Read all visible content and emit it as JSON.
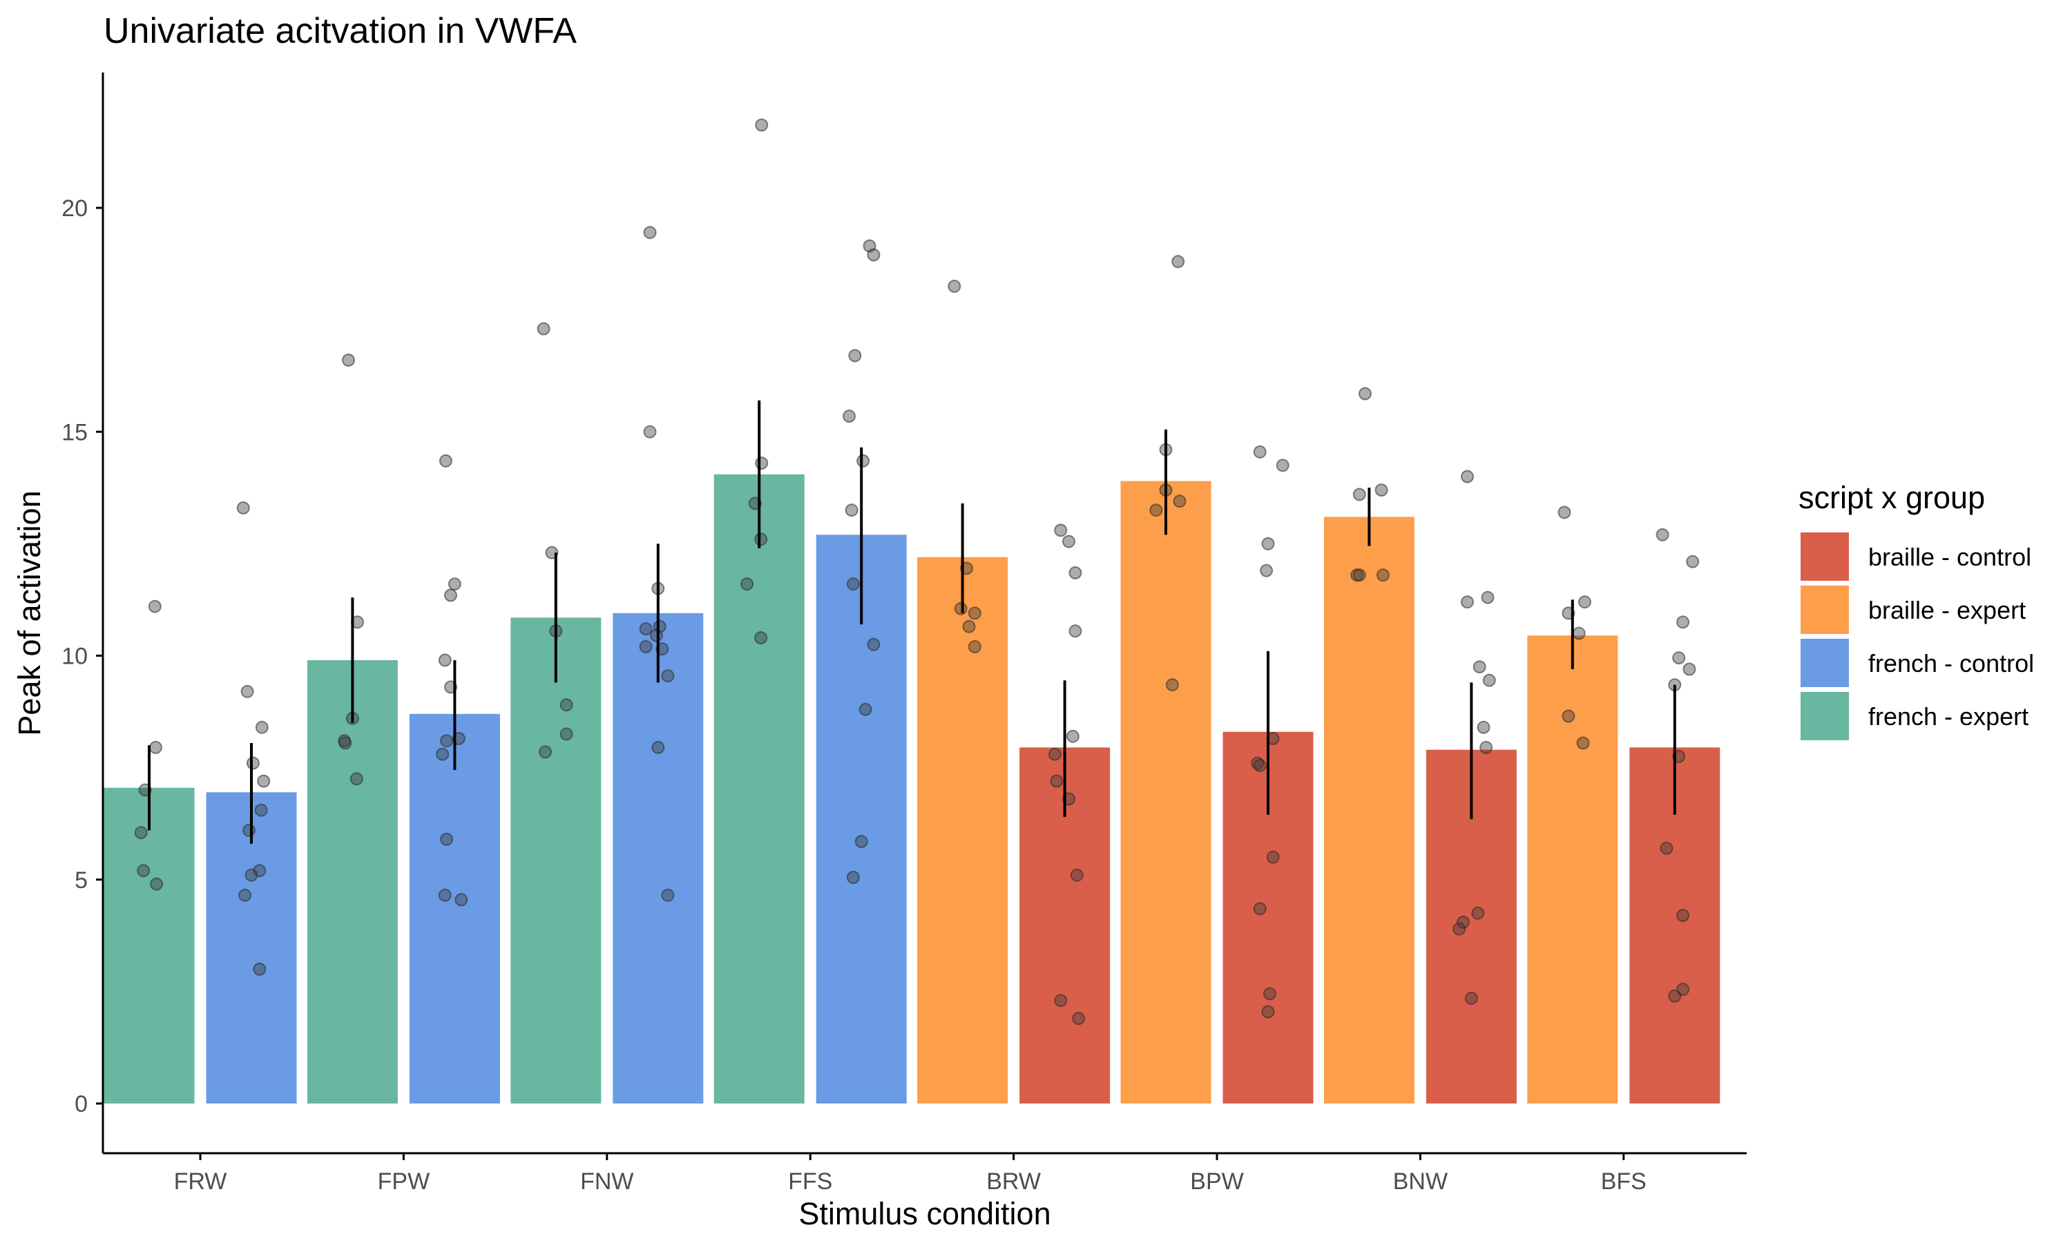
{
  "chart_data": {
    "type": "bar",
    "title": "Univariate acitvation in VWFA",
    "xlabel": "Stimulus condition",
    "ylabel": "Peak of activation",
    "ylim": [
      -1.1,
      23
    ],
    "yticks": [
      0,
      5,
      10,
      15,
      20
    ],
    "categories": [
      "FRW",
      "FPW",
      "FNW",
      "FFS",
      "BRW",
      "BPW",
      "BNW",
      "BFS"
    ],
    "legend": {
      "title": "script x group",
      "placement": "right",
      "entries": [
        {
          "label": "braille - control",
          "color": "#D95F4A"
        },
        {
          "label": "braille - expert",
          "color": "#FD9E4B"
        },
        {
          "label": "french - control",
          "color": "#6A9BE4"
        },
        {
          "label": "french - expert",
          "color": "#69B6A1"
        }
      ]
    },
    "grid": false,
    "bars": [
      {
        "category": "FRW",
        "group": "french - expert",
        "value": 7.05,
        "error": [
          6.1,
          8.0
        ],
        "points": [
          [
            -0.1,
            6.05
          ],
          [
            -0.05,
            7.0
          ],
          [
            0.07,
            11.1
          ],
          [
            0.08,
            7.95
          ],
          [
            -0.07,
            5.2
          ],
          [
            0.09,
            4.9
          ]
        ]
      },
      {
        "category": "FRW",
        "group": "french - control",
        "value": 6.95,
        "error": [
          5.8,
          8.05
        ],
        "points": [
          [
            -0.08,
            4.65
          ],
          [
            -0.03,
            6.1
          ],
          [
            0.0,
            5.1
          ],
          [
            0.1,
            5.2
          ],
          [
            0.12,
            6.55
          ],
          [
            0.1,
            3.0
          ],
          [
            0.02,
            7.6
          ],
          [
            0.15,
            7.2
          ],
          [
            0.13,
            8.4
          ],
          [
            -0.05,
            9.2
          ],
          [
            -0.1,
            13.3
          ]
        ]
      },
      {
        "category": "FPW",
        "group": "french - expert",
        "value": 9.9,
        "error": [
          8.5,
          11.3
        ],
        "points": [
          [
            -0.05,
            16.6
          ],
          [
            0.06,
            10.75
          ],
          [
            0.0,
            8.6
          ],
          [
            -0.1,
            8.1
          ],
          [
            0.05,
            7.25
          ],
          [
            -0.09,
            8.05
          ]
        ]
      },
      {
        "category": "FPW",
        "group": "french - control",
        "value": 8.7,
        "error": [
          7.45,
          9.9
        ],
        "points": [
          [
            -0.11,
            14.35
          ],
          [
            0.0,
            11.6
          ],
          [
            -0.05,
            11.35
          ],
          [
            -0.12,
            9.9
          ],
          [
            -0.05,
            9.3
          ],
          [
            -0.1,
            8.1
          ],
          [
            0.05,
            8.15
          ],
          [
            -0.15,
            7.8
          ],
          [
            -0.1,
            5.9
          ],
          [
            -0.12,
            4.65
          ],
          [
            0.08,
            4.55
          ]
        ]
      },
      {
        "category": "FNW",
        "group": "french - expert",
        "value": 10.85,
        "error": [
          9.4,
          12.3
        ],
        "points": [
          [
            -0.15,
            17.3
          ],
          [
            -0.05,
            12.3
          ],
          [
            0.0,
            10.55
          ],
          [
            0.13,
            8.9
          ],
          [
            -0.13,
            7.85
          ],
          [
            0.13,
            8.25
          ]
        ]
      },
      {
        "category": "FNW",
        "group": "french - control",
        "value": 10.95,
        "error": [
          9.4,
          12.5
        ],
        "points": [
          [
            -0.1,
            19.45
          ],
          [
            -0.1,
            15.0
          ],
          [
            0.0,
            11.5
          ],
          [
            -0.15,
            10.6
          ],
          [
            0.02,
            10.65
          ],
          [
            -0.02,
            10.45
          ],
          [
            0.05,
            10.15
          ],
          [
            0.12,
            9.55
          ],
          [
            -0.15,
            10.2
          ],
          [
            0.0,
            7.95
          ],
          [
            0.12,
            4.65
          ]
        ]
      },
      {
        "category": "FFS",
        "group": "french - expert",
        "value": 14.05,
        "error": [
          12.4,
          15.7
        ],
        "points": [
          [
            0.03,
            21.85
          ],
          [
            0.03,
            14.3
          ],
          [
            -0.05,
            13.4
          ],
          [
            0.02,
            12.6
          ],
          [
            -0.15,
            11.6
          ],
          [
            0.02,
            10.4
          ]
        ]
      },
      {
        "category": "FFS",
        "group": "french - control",
        "value": 12.7,
        "error": [
          10.7,
          14.65
        ],
        "points": [
          [
            0.1,
            19.15
          ],
          [
            0.15,
            18.95
          ],
          [
            -0.08,
            16.7
          ],
          [
            -0.15,
            15.35
          ],
          [
            0.02,
            14.35
          ],
          [
            -0.12,
            13.25
          ],
          [
            -0.1,
            11.6
          ],
          [
            0.15,
            10.25
          ],
          [
            0.05,
            8.8
          ],
          [
            0.0,
            5.85
          ],
          [
            -0.1,
            5.05
          ]
        ]
      },
      {
        "category": "BRW",
        "group": "braille - expert",
        "value": 12.2,
        "error": [
          10.95,
          13.4
        ],
        "points": [
          [
            -0.1,
            18.25
          ],
          [
            0.05,
            11.95
          ],
          [
            -0.02,
            11.05
          ],
          [
            0.15,
            10.95
          ],
          [
            0.08,
            10.65
          ],
          [
            0.15,
            10.2
          ]
        ]
      },
      {
        "category": "BRW",
        "group": "braille - control",
        "value": 7.95,
        "error": [
          6.4,
          9.45
        ],
        "points": [
          [
            -0.05,
            12.8
          ],
          [
            0.13,
            11.85
          ],
          [
            0.05,
            12.55
          ],
          [
            0.13,
            10.55
          ],
          [
            0.1,
            8.2
          ],
          [
            -0.12,
            7.8
          ],
          [
            -0.1,
            7.2
          ],
          [
            0.05,
            6.8
          ],
          [
            0.15,
            5.1
          ],
          [
            -0.05,
            2.3
          ],
          [
            0.17,
            1.9
          ]
        ]
      },
      {
        "category": "BPW",
        "group": "braille - expert",
        "value": 13.9,
        "error": [
          12.7,
          15.05
        ],
        "points": [
          [
            0.15,
            18.8
          ],
          [
            0.0,
            14.6
          ],
          [
            0.0,
            13.7
          ],
          [
            -0.12,
            13.25
          ],
          [
            0.17,
            13.45
          ],
          [
            0.08,
            9.35
          ]
        ]
      },
      {
        "category": "BPW",
        "group": "braille - control",
        "value": 8.3,
        "error": [
          6.45,
          10.1
        ],
        "points": [
          [
            -0.1,
            14.55
          ],
          [
            0.18,
            14.25
          ],
          [
            0.0,
            12.5
          ],
          [
            -0.02,
            11.9
          ],
          [
            0.06,
            8.15
          ],
          [
            -0.13,
            7.6
          ],
          [
            -0.1,
            7.55
          ],
          [
            0.06,
            5.5
          ],
          [
            -0.1,
            4.35
          ],
          [
            0.02,
            2.45
          ],
          [
            0.0,
            2.05
          ]
        ]
      },
      {
        "category": "BNW",
        "group": "braille - expert",
        "value": 13.1,
        "error": [
          12.45,
          13.75
        ],
        "points": [
          [
            -0.05,
            15.85
          ],
          [
            0.15,
            13.7
          ],
          [
            -0.12,
            13.6
          ],
          [
            -0.15,
            11.8
          ],
          [
            -0.12,
            11.8
          ],
          [
            0.17,
            11.8
          ]
        ]
      },
      {
        "category": "BNW",
        "group": "braille - control",
        "value": 7.9,
        "error": [
          6.35,
          9.4
        ],
        "points": [
          [
            -0.05,
            14.0
          ],
          [
            0.2,
            11.3
          ],
          [
            -0.05,
            11.2
          ],
          [
            0.1,
            9.75
          ],
          [
            0.22,
            9.45
          ],
          [
            0.15,
            8.4
          ],
          [
            0.18,
            7.95
          ],
          [
            -0.1,
            4.05
          ],
          [
            0.08,
            4.25
          ],
          [
            -0.15,
            3.9
          ],
          [
            0.0,
            2.35
          ]
        ]
      },
      {
        "category": "BFS",
        "group": "braille - expert",
        "value": 10.45,
        "error": [
          9.7,
          11.25
        ],
        "points": [
          [
            -0.1,
            13.2
          ],
          [
            -0.05,
            10.95
          ],
          [
            0.15,
            11.2
          ],
          [
            0.08,
            10.5
          ],
          [
            -0.05,
            8.65
          ],
          [
            0.13,
            8.05
          ]
        ]
      },
      {
        "category": "BFS",
        "group": "braille - control",
        "value": 7.95,
        "error": [
          6.45,
          9.35
        ],
        "points": [
          [
            -0.15,
            12.7
          ],
          [
            0.22,
            12.1
          ],
          [
            0.1,
            10.75
          ],
          [
            0.05,
            9.95
          ],
          [
            0.18,
            9.7
          ],
          [
            0.0,
            9.35
          ],
          [
            0.05,
            7.75
          ],
          [
            -0.1,
            5.7
          ],
          [
            0.1,
            4.2
          ],
          [
            0.1,
            2.55
          ],
          [
            0.0,
            2.4
          ]
        ]
      }
    ]
  }
}
